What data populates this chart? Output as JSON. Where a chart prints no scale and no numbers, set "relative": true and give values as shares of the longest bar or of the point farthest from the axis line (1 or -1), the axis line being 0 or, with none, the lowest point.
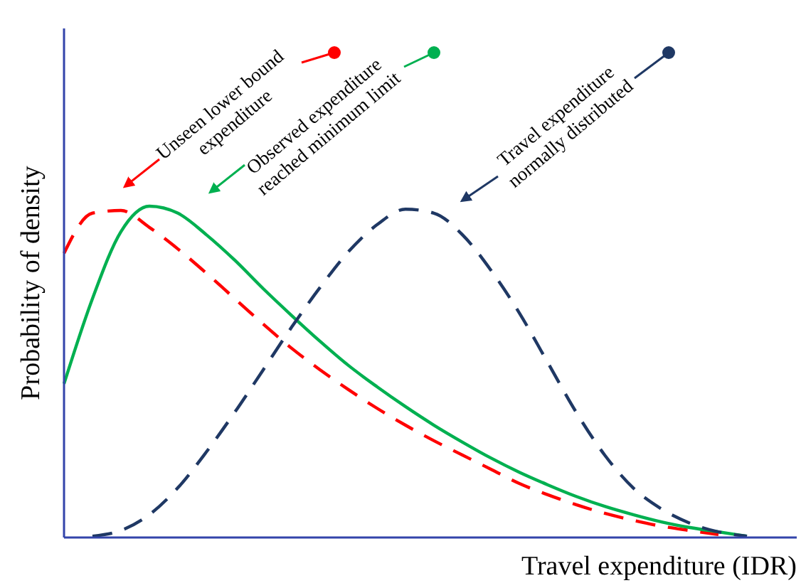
{
  "chart_data": {
    "type": "line",
    "relative": true,
    "xlabel": "Travel expenditure (IDR)",
    "ylabel": "Probability of density",
    "categories": [
      null,
      null,
      null,
      null,
      null,
      null,
      null,
      null,
      null,
      null,
      null,
      null,
      null,
      null,
      null,
      null,
      null,
      null,
      null,
      null,
      null,
      null,
      null,
      null,
      null,
      null
    ],
    "series": [
      {
        "color": "#ff0000",
        "line_style": "dashed",
        "values": [
          0.858,
          0.979,
          0.987,
          0.936,
          0.871,
          0.798,
          0.721,
          0.644,
          0.571,
          0.506,
          0.446,
          0.39,
          0.339,
          0.292,
          0.249,
          0.206,
          0.163,
          0.129,
          0.099,
          0.073,
          0.052,
          0.034,
          0.021,
          0.009,
          null,
          null
        ]
      },
      {
        "color": "#00b050",
        "line_style": "solid",
        "values": [
          0.464,
          0.721,
          0.923,
          1,
          0.979,
          0.914,
          0.837,
          0.751,
          0.67,
          0.592,
          0.519,
          0.455,
          0.395,
          0.339,
          0.288,
          0.24,
          0.197,
          0.159,
          0.124,
          0.094,
          0.069,
          0.047,
          0.03,
          0.017,
          0.004,
          null
        ]
      },
      {
        "color": "#1f3864",
        "line_style": "dashed",
        "values": [
          null,
          0.004,
          0.021,
          0.069,
          0.15,
          0.258,
          0.378,
          0.506,
          0.635,
          0.755,
          0.863,
          0.944,
          0.991,
          0.979,
          0.914,
          0.807,
          0.678,
          0.528,
          0.378,
          0.249,
          0.15,
          0.086,
          0.043,
          0.017,
          0.004,
          null
        ]
      }
    ],
    "annotations": [
      "Unseen lower bound expenditure",
      "Observed expenditure reached minimum limit",
      "Travel expenditure normally distributed"
    ],
    "grid": false,
    "legend": false,
    "marker": "none"
  }
}
